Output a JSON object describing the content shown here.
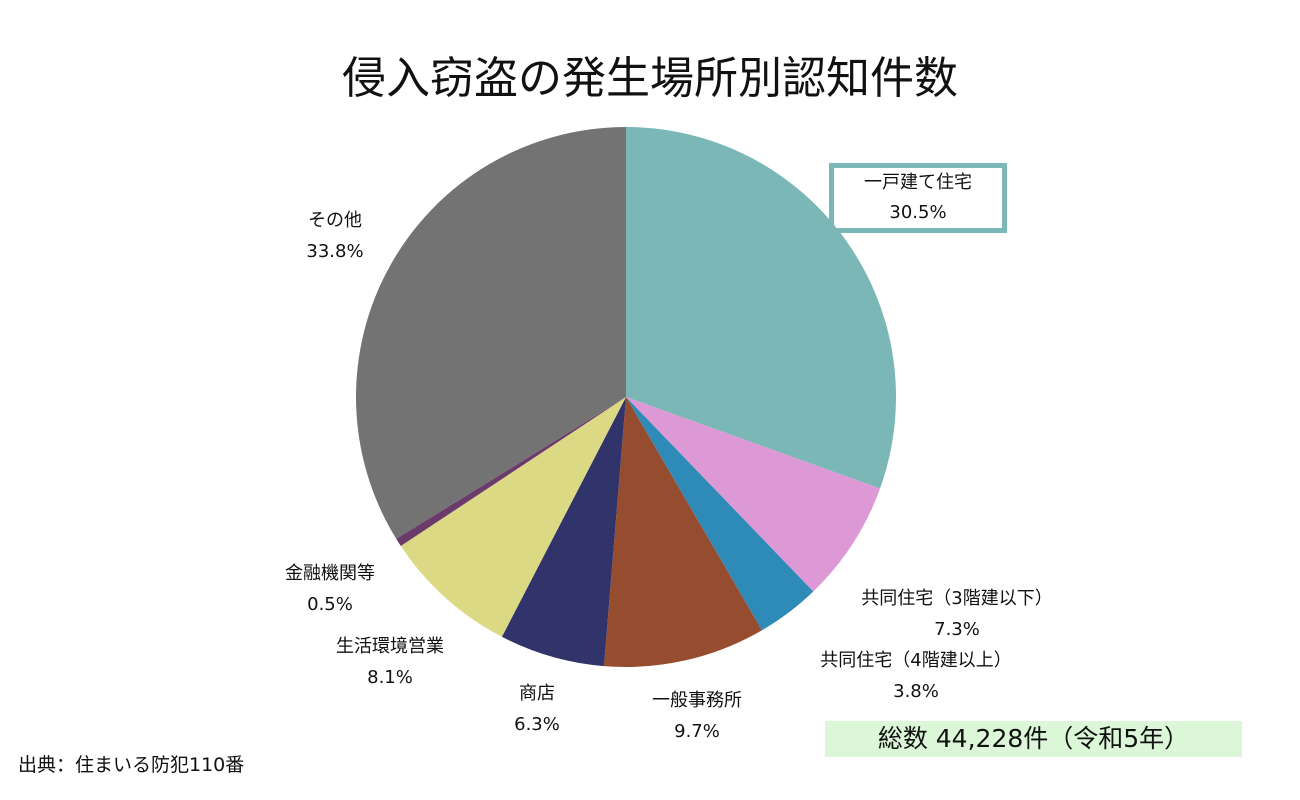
{
  "chart_data": {
    "type": "pie",
    "title": "侵入窃盗の発生場所別認知件数",
    "start": "top",
    "direction": "clockwise",
    "slices": [
      {
        "label": "一戸建て住宅",
        "value": 30.5,
        "display": "30.5%",
        "color": "#7bb7b7"
      },
      {
        "label": "共同住宅（3階建以下）",
        "value": 7.3,
        "display": "7.3%",
        "color": "#dd99d5"
      },
      {
        "label": "共同住宅（4階建以上）",
        "value": 3.8,
        "display": "3.8%",
        "color": "#2e8bb8"
      },
      {
        "label": "一般事務所",
        "value": 9.7,
        "display": "9.7%",
        "color": "#964c2f"
      },
      {
        "label": "商店",
        "value": 6.3,
        "display": "6.3%",
        "color": "#31336b"
      },
      {
        "label": "生活環境営業",
        "value": 8.1,
        "display": "8.1%",
        "color": "#dcd985"
      },
      {
        "label": "金融機関等",
        "value": 0.5,
        "display": "0.5%",
        "color": "#6b3c6b"
      },
      {
        "label": "その他",
        "value": 33.8,
        "display": "33.8%",
        "color": "#737373"
      }
    ],
    "highlight_border_color": "#7bb7b7"
  },
  "source": "出典：住まいる防犯110番",
  "total": "総数 44,228件（令和5年）"
}
